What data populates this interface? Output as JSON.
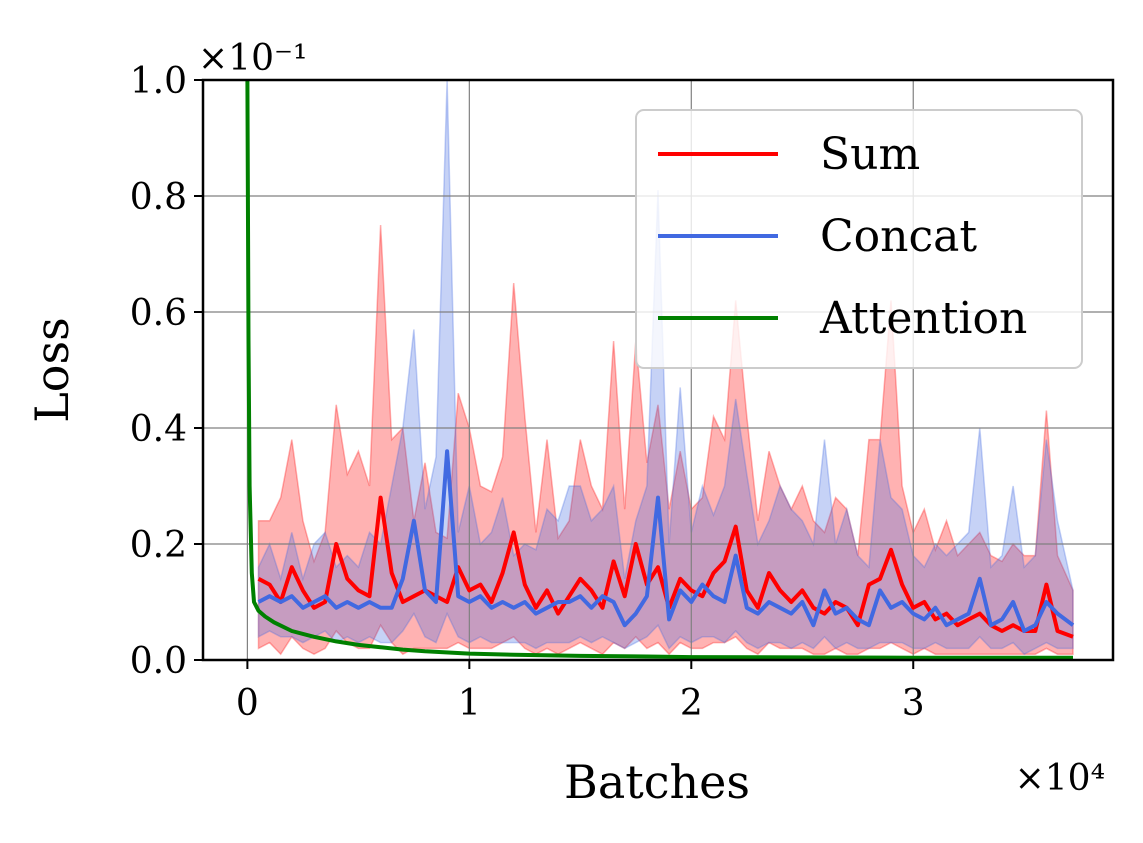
{
  "chart_data": {
    "type": "line",
    "title": "",
    "xlabel": "Batches",
    "ylabel": "Loss",
    "x_exponent_label": "×10⁴",
    "y_exponent_label": "×10⁻¹",
    "xlim": [
      -0.2,
      3.9
    ],
    "ylim": [
      0.0,
      1.0
    ],
    "xticks": [
      0,
      1,
      2,
      3
    ],
    "xtick_labels": [
      "0",
      "1",
      "2",
      "3"
    ],
    "yticks": [
      0.0,
      0.2,
      0.4,
      0.6,
      0.8,
      1.0
    ],
    "ytick_labels": [
      "0.0",
      "0.2",
      "0.4",
      "0.6",
      "0.8",
      "1.0"
    ],
    "grid": true,
    "legend_position": "top-right",
    "series": [
      {
        "name": "Sum",
        "color": "#ff0000",
        "x": [
          0.05,
          0.1,
          0.15,
          0.2,
          0.25,
          0.3,
          0.35,
          0.4,
          0.45,
          0.5,
          0.55,
          0.6,
          0.65,
          0.7,
          0.75,
          0.8,
          0.85,
          0.9,
          0.95,
          1.0,
          1.05,
          1.1,
          1.15,
          1.2,
          1.25,
          1.3,
          1.35,
          1.4,
          1.45,
          1.5,
          1.55,
          1.6,
          1.65,
          1.7,
          1.75,
          1.8,
          1.85,
          1.9,
          1.95,
          2.0,
          2.05,
          2.1,
          2.15,
          2.2,
          2.25,
          2.3,
          2.35,
          2.4,
          2.45,
          2.5,
          2.55,
          2.6,
          2.65,
          2.7,
          2.75,
          2.8,
          2.85,
          2.9,
          2.95,
          3.0,
          3.05,
          3.1,
          3.15,
          3.2,
          3.25,
          3.3,
          3.35,
          3.4,
          3.45,
          3.5,
          3.55,
          3.6,
          3.65,
          3.72
        ],
        "y": [
          0.14,
          0.13,
          0.1,
          0.16,
          0.12,
          0.09,
          0.1,
          0.2,
          0.14,
          0.12,
          0.11,
          0.28,
          0.15,
          0.1,
          0.11,
          0.12,
          0.11,
          0.1,
          0.16,
          0.12,
          0.13,
          0.1,
          0.15,
          0.22,
          0.13,
          0.09,
          0.12,
          0.08,
          0.11,
          0.14,
          0.12,
          0.09,
          0.17,
          0.11,
          0.2,
          0.13,
          0.16,
          0.09,
          0.14,
          0.12,
          0.11,
          0.15,
          0.17,
          0.23,
          0.12,
          0.09,
          0.15,
          0.12,
          0.1,
          0.12,
          0.09,
          0.08,
          0.1,
          0.09,
          0.06,
          0.13,
          0.14,
          0.19,
          0.13,
          0.09,
          0.1,
          0.07,
          0.08,
          0.06,
          0.07,
          0.08,
          0.06,
          0.05,
          0.06,
          0.05,
          0.05,
          0.13,
          0.05,
          0.04
        ],
        "upper": [
          0.24,
          0.24,
          0.28,
          0.38,
          0.24,
          0.17,
          0.22,
          0.44,
          0.32,
          0.36,
          0.3,
          0.75,
          0.38,
          0.4,
          0.24,
          0.34,
          0.22,
          0.21,
          0.46,
          0.4,
          0.3,
          0.29,
          0.35,
          0.65,
          0.42,
          0.22,
          0.38,
          0.21,
          0.24,
          0.38,
          0.3,
          0.26,
          0.55,
          0.26,
          0.55,
          0.34,
          0.44,
          0.26,
          0.36,
          0.26,
          0.28,
          0.42,
          0.38,
          0.62,
          0.42,
          0.24,
          0.36,
          0.3,
          0.26,
          0.3,
          0.24,
          0.22,
          0.28,
          0.26,
          0.18,
          0.38,
          0.38,
          0.62,
          0.3,
          0.22,
          0.26,
          0.19,
          0.24,
          0.18,
          0.2,
          0.22,
          0.18,
          0.17,
          0.2,
          0.18,
          0.18,
          0.43,
          0.18,
          0.12
        ],
        "lower": [
          0.02,
          0.03,
          0.01,
          0.04,
          0.02,
          0.01,
          0.02,
          0.05,
          0.03,
          0.02,
          0.02,
          0.06,
          0.03,
          0.01,
          0.02,
          0.02,
          0.02,
          0.02,
          0.03,
          0.02,
          0.02,
          0.02,
          0.03,
          0.04,
          0.02,
          0.01,
          0.02,
          0.01,
          0.02,
          0.03,
          0.02,
          0.01,
          0.03,
          0.02,
          0.04,
          0.02,
          0.03,
          0.01,
          0.03,
          0.02,
          0.02,
          0.03,
          0.03,
          0.04,
          0.02,
          0.01,
          0.03,
          0.02,
          0.02,
          0.02,
          0.01,
          0.01,
          0.02,
          0.01,
          0.01,
          0.02,
          0.02,
          0.03,
          0.02,
          0.01,
          0.02,
          0.01,
          0.01,
          0.01,
          0.01,
          0.01,
          0.01,
          0.01,
          0.01,
          0.01,
          0.01,
          0.02,
          0.01,
          0.01
        ]
      },
      {
        "name": "Concat",
        "color": "#4169e1",
        "x": [
          0.05,
          0.1,
          0.15,
          0.2,
          0.25,
          0.3,
          0.35,
          0.4,
          0.45,
          0.5,
          0.55,
          0.6,
          0.65,
          0.7,
          0.75,
          0.8,
          0.85,
          0.9,
          0.95,
          1.0,
          1.05,
          1.1,
          1.15,
          1.2,
          1.25,
          1.3,
          1.35,
          1.4,
          1.45,
          1.5,
          1.55,
          1.6,
          1.65,
          1.7,
          1.75,
          1.8,
          1.85,
          1.9,
          1.95,
          2.0,
          2.05,
          2.1,
          2.15,
          2.2,
          2.25,
          2.3,
          2.35,
          2.4,
          2.45,
          2.5,
          2.55,
          2.6,
          2.65,
          2.7,
          2.75,
          2.8,
          2.85,
          2.9,
          2.95,
          3.0,
          3.05,
          3.1,
          3.15,
          3.2,
          3.25,
          3.3,
          3.35,
          3.4,
          3.45,
          3.5,
          3.55,
          3.6,
          3.65,
          3.72
        ],
        "y": [
          0.1,
          0.11,
          0.1,
          0.11,
          0.09,
          0.1,
          0.11,
          0.09,
          0.1,
          0.09,
          0.1,
          0.09,
          0.09,
          0.14,
          0.24,
          0.12,
          0.1,
          0.36,
          0.11,
          0.1,
          0.11,
          0.09,
          0.1,
          0.09,
          0.1,
          0.08,
          0.09,
          0.1,
          0.1,
          0.11,
          0.09,
          0.11,
          0.1,
          0.06,
          0.08,
          0.11,
          0.28,
          0.07,
          0.12,
          0.1,
          0.13,
          0.11,
          0.1,
          0.18,
          0.09,
          0.08,
          0.1,
          0.09,
          0.08,
          0.1,
          0.06,
          0.12,
          0.08,
          0.09,
          0.07,
          0.06,
          0.12,
          0.09,
          0.1,
          0.08,
          0.07,
          0.09,
          0.06,
          0.07,
          0.08,
          0.14,
          0.06,
          0.07,
          0.1,
          0.05,
          0.06,
          0.1,
          0.08,
          0.06
        ],
        "upper": [
          0.16,
          0.2,
          0.14,
          0.22,
          0.14,
          0.2,
          0.22,
          0.16,
          0.18,
          0.16,
          0.22,
          0.2,
          0.3,
          0.4,
          0.57,
          0.26,
          0.35,
          1.0,
          0.22,
          0.3,
          0.2,
          0.22,
          0.28,
          0.18,
          0.2,
          0.19,
          0.26,
          0.24,
          0.3,
          0.3,
          0.24,
          0.26,
          0.3,
          0.14,
          0.24,
          0.3,
          0.81,
          0.2,
          0.47,
          0.22,
          0.3,
          0.25,
          0.3,
          0.45,
          0.32,
          0.2,
          0.24,
          0.3,
          0.26,
          0.24,
          0.2,
          0.38,
          0.2,
          0.26,
          0.18,
          0.16,
          0.38,
          0.28,
          0.26,
          0.18,
          0.16,
          0.2,
          0.18,
          0.2,
          0.22,
          0.4,
          0.16,
          0.18,
          0.3,
          0.16,
          0.18,
          0.38,
          0.24,
          0.12
        ],
        "lower": [
          0.04,
          0.05,
          0.04,
          0.04,
          0.03,
          0.04,
          0.05,
          0.03,
          0.04,
          0.03,
          0.04,
          0.03,
          0.03,
          0.05,
          0.08,
          0.04,
          0.03,
          0.08,
          0.04,
          0.03,
          0.04,
          0.03,
          0.03,
          0.03,
          0.03,
          0.02,
          0.03,
          0.03,
          0.03,
          0.04,
          0.03,
          0.04,
          0.03,
          0.02,
          0.03,
          0.04,
          0.06,
          0.02,
          0.04,
          0.03,
          0.04,
          0.04,
          0.03,
          0.05,
          0.03,
          0.02,
          0.03,
          0.03,
          0.02,
          0.03,
          0.02,
          0.04,
          0.02,
          0.03,
          0.02,
          0.02,
          0.03,
          0.03,
          0.03,
          0.02,
          0.02,
          0.03,
          0.02,
          0.02,
          0.02,
          0.04,
          0.02,
          0.02,
          0.03,
          0.01,
          0.02,
          0.03,
          0.02,
          0.02
        ]
      },
      {
        "name": "Attention",
        "color": "#008000",
        "x": [
          0.0,
          0.005,
          0.01,
          0.02,
          0.03,
          0.05,
          0.08,
          0.12,
          0.2,
          0.3,
          0.4,
          0.5,
          0.6,
          0.7,
          0.8,
          1.0,
          1.2,
          1.5,
          1.8,
          2.0,
          2.5,
          3.0,
          3.5,
          3.72
        ],
        "y": [
          1.0,
          0.55,
          0.3,
          0.15,
          0.1,
          0.085,
          0.075,
          0.065,
          0.05,
          0.04,
          0.032,
          0.026,
          0.022,
          0.018,
          0.015,
          0.011,
          0.009,
          0.007,
          0.006,
          0.005,
          0.0045,
          0.004,
          0.004,
          0.004
        ]
      }
    ]
  }
}
